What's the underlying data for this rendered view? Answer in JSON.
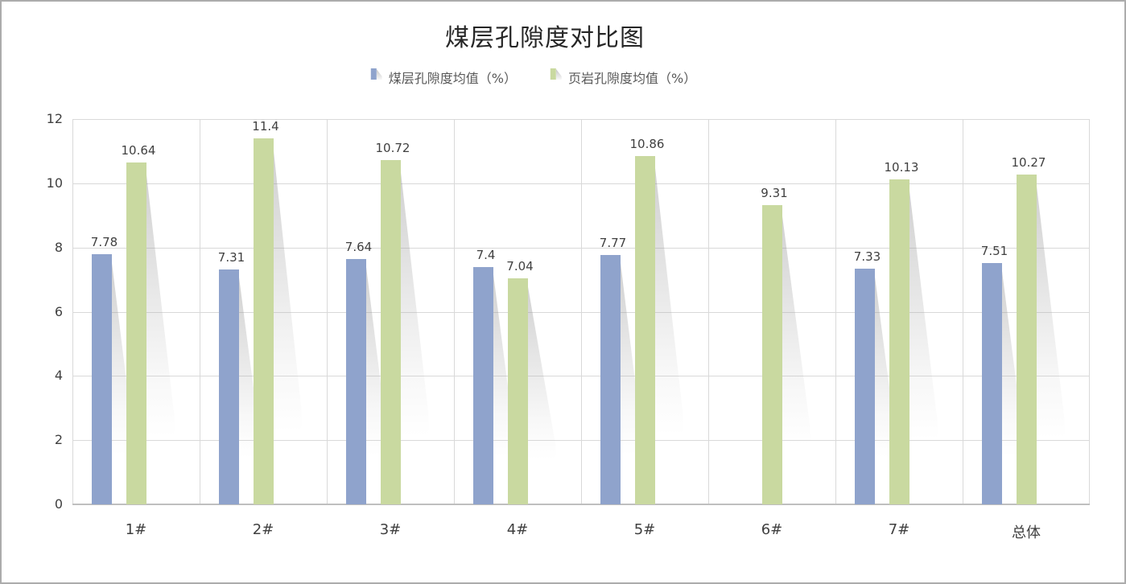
{
  "title": "煤层孔隙度对比图",
  "legend": {
    "items": [
      {
        "label": "煤层孔隙度均值（%）"
      },
      {
        "label": "页岩孔隙度均值（%）"
      }
    ]
  },
  "colors": {
    "coal_bar": "#8fa3cc",
    "shale_bar": "#c9d9a0",
    "gridline": "#d9d9d9",
    "axis_line": "#bfbfbf",
    "label_text": "#404040"
  },
  "chart_data": {
    "type": "bar",
    "title": "煤层孔隙度对比图",
    "categories": [
      "1#",
      "2#",
      "3#",
      "4#",
      "5#",
      "6#",
      "7#",
      "总体"
    ],
    "series": [
      {
        "name": "煤层孔隙度均值（%）",
        "color": "#8fa3cc",
        "values": [
          7.78,
          7.31,
          7.64,
          7.4,
          7.77,
          null,
          7.33,
          7.51
        ]
      },
      {
        "name": "页岩孔隙度均值（%）",
        "color": "#c9d9a0",
        "values": [
          10.64,
          11.4,
          10.72,
          7.04,
          10.86,
          9.31,
          10.13,
          10.27
        ]
      }
    ],
    "xlabel": "",
    "ylabel": "",
    "ylim": [
      0,
      12
    ],
    "yticks": [
      0,
      2,
      4,
      6,
      8,
      10,
      12
    ],
    "grid": true,
    "legend_position": "top",
    "data_labels": true
  }
}
